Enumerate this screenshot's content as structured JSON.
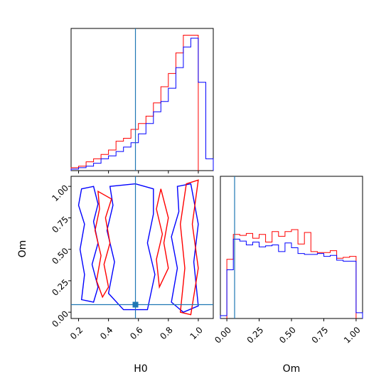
{
  "colors": {
    "series_red": "#ff0000",
    "series_blue": "#0000ff",
    "truth_line": "#1f77b4",
    "frame": "#000000"
  },
  "chart_data": {
    "type": "corner",
    "parameters": [
      "H0",
      "Om"
    ],
    "truth": {
      "H0": 0.58,
      "Om": 0.06
    },
    "series": [
      {
        "color": "red",
        "h0_hist": {
          "edges": [
            0.15,
            0.2,
            0.25,
            0.3,
            0.35,
            0.4,
            0.45,
            0.5,
            0.55,
            0.6,
            0.65,
            0.7,
            0.75,
            0.8,
            0.85,
            0.9,
            0.95,
            1.0
          ],
          "counts": [
            2,
            3,
            6,
            8,
            11,
            14,
            20,
            22,
            28,
            32,
            37,
            46,
            57,
            66,
            80,
            92,
            92
          ]
        },
        "om_hist": {
          "edges": [
            0.0,
            0.05,
            0.1,
            0.15,
            0.2,
            0.25,
            0.3,
            0.35,
            0.4,
            0.45,
            0.5,
            0.55,
            0.6,
            0.65,
            0.7,
            0.75,
            0.8,
            0.85,
            0.9,
            0.95,
            1.0
          ],
          "counts": [
            62,
            88,
            87,
            89,
            84,
            88,
            80,
            91,
            86,
            91,
            93,
            78,
            90,
            70,
            69,
            69,
            71,
            63,
            64,
            65
          ]
        }
      },
      {
        "color": "blue",
        "h0_hist": {
          "edges": [
            0.15,
            0.2,
            0.25,
            0.3,
            0.35,
            0.4,
            0.45,
            0.5,
            0.55,
            0.6,
            0.65,
            0.7,
            0.75,
            0.8,
            0.85,
            0.9,
            0.95,
            1.0,
            1.05,
            1.1
          ],
          "counts": [
            1,
            2,
            3,
            5,
            8,
            10,
            13,
            16,
            19,
            25,
            32,
            40,
            47,
            56,
            70,
            84,
            90,
            60,
            8
          ]
        },
        "om_hist": {
          "edges": [
            -0.05,
            0.0,
            0.05,
            0.1,
            0.15,
            0.2,
            0.25,
            0.3,
            0.35,
            0.4,
            0.45,
            0.5,
            0.55,
            0.6,
            0.65,
            0.7,
            0.75,
            0.8,
            0.85,
            0.9,
            0.95,
            1.0,
            1.05
          ],
          "counts": [
            3,
            51,
            83,
            81,
            77,
            80,
            75,
            76,
            77,
            70,
            79,
            74,
            68,
            67,
            67,
            68,
            65,
            66,
            61,
            60,
            60,
            6
          ]
        }
      }
    ],
    "axes": {
      "H0_xlim": [
        0.15,
        1.1
      ],
      "Om_ylim": [
        -0.05,
        1.08
      ],
      "Om_xlim": [
        -0.05,
        1.05
      ],
      "H0_ticks": [
        "0.2",
        "0.4",
        "0.6",
        "0.8",
        "1.0"
      ],
      "Om_ticks": [
        "0.00",
        "0.25",
        "0.50",
        "0.75",
        "1.00"
      ],
      "H0_tick_values": [
        0.2,
        0.4,
        0.6,
        0.8,
        1.0
      ],
      "Om_tick_values": [
        0.0,
        0.25,
        0.5,
        0.75,
        1.0
      ]
    },
    "labels": {
      "h0_xlabel": "H0",
      "om_xlabel": "Om",
      "om_ylabel": "Om"
    },
    "contours": {
      "blue": [
        [
          [
            0.22,
            0.98
          ],
          [
            0.3,
            1.0
          ],
          [
            0.33,
            0.86
          ],
          [
            0.3,
            0.72
          ],
          [
            0.33,
            0.55
          ],
          [
            0.29,
            0.38
          ],
          [
            0.33,
            0.2
          ],
          [
            0.3,
            0.08
          ],
          [
            0.22,
            0.1
          ],
          [
            0.24,
            0.3
          ],
          [
            0.21,
            0.5
          ],
          [
            0.24,
            0.7
          ],
          [
            0.2,
            0.85
          ]
        ],
        [
          [
            0.41,
            1.0
          ],
          [
            0.58,
            1.02
          ],
          [
            0.7,
            0.98
          ],
          [
            0.7,
            0.78
          ],
          [
            0.66,
            0.55
          ],
          [
            0.71,
            0.3
          ],
          [
            0.66,
            0.02
          ],
          [
            0.5,
            0.02
          ],
          [
            0.4,
            0.15
          ],
          [
            0.44,
            0.4
          ],
          [
            0.39,
            0.65
          ],
          [
            0.43,
            0.85
          ]
        ],
        [
          [
            0.86,
            1.0
          ],
          [
            0.95,
            1.02
          ],
          [
            1.0,
            0.7
          ],
          [
            0.97,
            0.4
          ],
          [
            1.0,
            0.05
          ],
          [
            0.9,
            0.0
          ],
          [
            0.82,
            0.08
          ],
          [
            0.86,
            0.35
          ],
          [
            0.82,
            0.6
          ],
          [
            0.87,
            0.8
          ]
        ]
      ],
      "red": [
        [
          [
            0.33,
            0.96
          ],
          [
            0.42,
            0.9
          ],
          [
            0.38,
            0.75
          ],
          [
            0.41,
            0.55
          ],
          [
            0.37,
            0.38
          ],
          [
            0.4,
            0.2
          ],
          [
            0.36,
            0.12
          ],
          [
            0.32,
            0.25
          ],
          [
            0.35,
            0.45
          ],
          [
            0.31,
            0.65
          ],
          [
            0.34,
            0.82
          ]
        ],
        [
          [
            0.75,
            0.98
          ],
          [
            0.8,
            0.75
          ],
          [
            0.77,
            0.55
          ],
          [
            0.8,
            0.35
          ],
          [
            0.74,
            0.2
          ],
          [
            0.72,
            0.42
          ],
          [
            0.76,
            0.62
          ],
          [
            0.72,
            0.82
          ]
        ],
        [
          [
            0.92,
            1.02
          ],
          [
            1.0,
            1.05
          ],
          [
            0.96,
            0.7
          ],
          [
            1.0,
            0.35
          ],
          [
            0.95,
            -0.02
          ],
          [
            0.88,
            0.0
          ],
          [
            0.91,
            0.35
          ],
          [
            0.88,
            0.7
          ]
        ]
      ]
    }
  }
}
